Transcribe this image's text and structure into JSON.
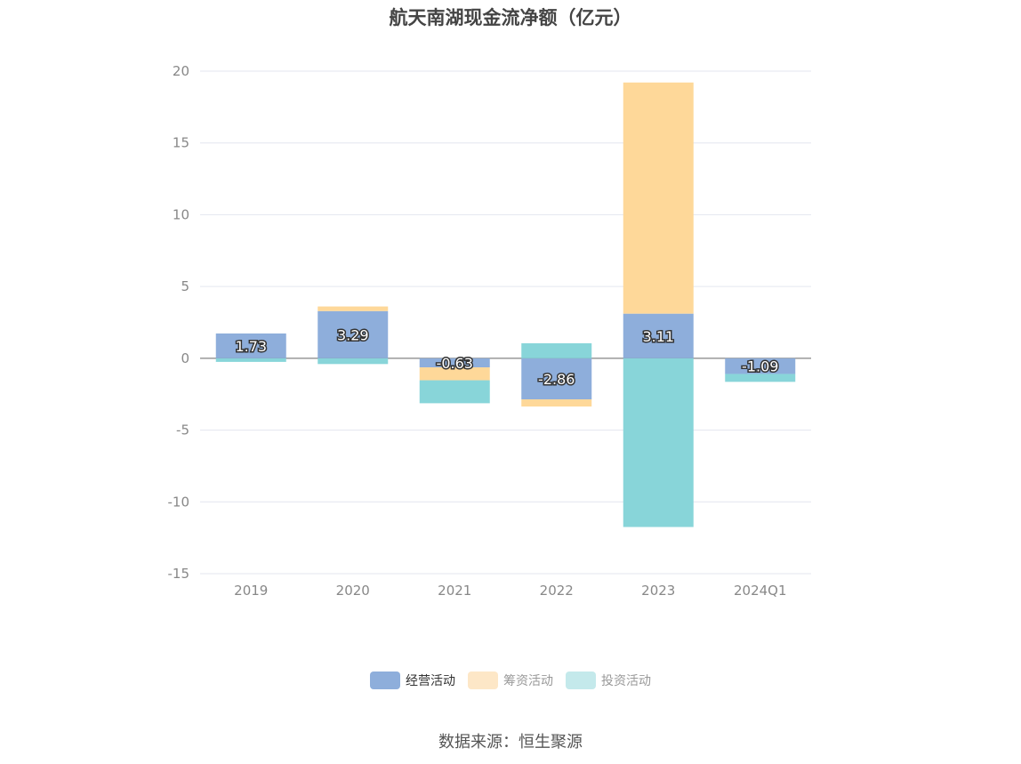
{
  "chart_data": {
    "type": "bar",
    "stacked": true,
    "title": "航天南湖现金流净额（亿元）",
    "categories": [
      "2019",
      "2020",
      "2021",
      "2022",
      "2023",
      "2024Q1"
    ],
    "series": [
      {
        "name": "经营活动",
        "values": [
          1.73,
          3.29,
          -0.63,
          -2.86,
          3.11,
          -1.09
        ],
        "color": "#8eaedb",
        "show_labels": true
      },
      {
        "name": "筹资活动",
        "values": [
          0,
          0.32,
          -0.9,
          -0.5,
          16.1,
          0
        ],
        "color": "#fed899"
      },
      {
        "name": "投资活动",
        "values": [
          -0.25,
          -0.4,
          -1.6,
          1.05,
          -11.75,
          -0.55
        ],
        "color": "#88d5d9"
      }
    ],
    "ylim": [
      -15,
      20
    ],
    "yticks": [
      20,
      15,
      10,
      5,
      0,
      -5,
      -10,
      -15
    ],
    "grid": true,
    "legend_position": "bottom"
  },
  "legend": {
    "items": [
      {
        "label": "经营活动",
        "color": "#8eaedb",
        "swatch_color": "#8eaedb",
        "active": true
      },
      {
        "label": "筹资活动",
        "color": "#fed899",
        "swatch_color": "#fde7c7",
        "active": false
      },
      {
        "label": "投资活动",
        "color": "#88d5d9",
        "swatch_color": "#c4e9eb",
        "active": false
      }
    ]
  },
  "footer": {
    "source": "数据来源：恒生聚源"
  }
}
